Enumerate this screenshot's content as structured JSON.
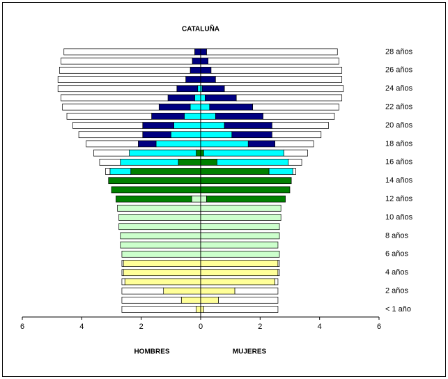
{
  "chart_data": {
    "type": "pyramid",
    "title": "CATALUÑA",
    "categories": [
      "< 1 año",
      null,
      "2 años",
      null,
      "4 años",
      null,
      "6 años",
      null,
      "8 años",
      null,
      "10 años",
      null,
      "12 años",
      null,
      "14 años",
      null,
      "16 años",
      null,
      "18 años",
      null,
      "20 años",
      null,
      "22 años",
      null,
      "24 años",
      null,
      "26 años",
      null,
      "28 años"
    ],
    "xlim": [
      -6,
      6
    ],
    "xticks": [
      {
        "value": -6,
        "label": "6"
      },
      {
        "value": -4,
        "label": "4"
      },
      {
        "value": -2,
        "label": "2"
      },
      0,
      2,
      4,
      6
    ],
    "groups": [
      {
        "label": "HOMBRES",
        "side": "left",
        "series": [
          {
            "color": "#ffff99",
            "values": [
              0.15,
              0.65,
              1.25,
              2.55,
              2.6,
              2.6,
              0,
              0,
              0,
              0,
              0,
              0,
              0,
              0,
              0,
              0,
              0,
              0,
              0,
              0,
              0,
              0,
              0,
              0,
              0,
              0,
              0,
              0,
              0
            ]
          },
          {
            "color": "#ccffcc",
            "values": [
              0,
              0,
              0,
              0,
              0,
              0,
              2.65,
              2.7,
              2.7,
              2.75,
              2.75,
              2.8,
              0.3,
              0,
              0,
              0,
              0,
              0,
              0,
              0,
              0,
              0,
              0,
              0,
              0,
              0,
              0,
              0,
              0
            ]
          },
          {
            "color": "#008000",
            "values": [
              0,
              0,
              0,
              0,
              0,
              0,
              0,
              0,
              0,
              0,
              0,
              0,
              2.55,
              3.0,
              3.1,
              2.35,
              0.75,
              0.15,
              0,
              0,
              0,
              0,
              0,
              0,
              0,
              0,
              0,
              0,
              0
            ]
          },
          {
            "color": "#00ffff",
            "values": [
              0,
              0,
              0,
              0,
              0,
              0,
              0,
              0,
              0,
              0,
              0,
              0,
              0,
              0,
              0,
              0.7,
              1.95,
              2.25,
              1.5,
              1.0,
              0.9,
              0.55,
              0.35,
              0.2,
              0.1,
              0,
              0,
              0,
              0
            ]
          },
          {
            "color": "#000080",
            "values": [
              0,
              0,
              0,
              0,
              0,
              0,
              0,
              0,
              0,
              0,
              0,
              0,
              0,
              0,
              0,
              0,
              0,
              0,
              0.6,
              0.95,
              1.05,
              1.1,
              1.05,
              0.9,
              0.7,
              0.5,
              0.35,
              0.28,
              0.2
            ]
          },
          {
            "color": "#ffffff",
            "values": [
              2.5,
              2.0,
              1.4,
              0.1,
              0.05,
              0.05,
              0,
              0,
              0,
              0,
              0,
              0,
              0,
              0,
              0,
              0.15,
              0.7,
              1.2,
              1.75,
              2.15,
              2.35,
              2.85,
              3.25,
              3.6,
              4.0,
              4.3,
              4.4,
              4.42,
              4.4
            ]
          }
        ]
      },
      {
        "label": "MUJERES",
        "side": "right",
        "series": [
          {
            "color": "#ffff99",
            "values": [
              0.1,
              0.6,
              1.15,
              2.5,
              2.6,
              2.6,
              0,
              0,
              0,
              0,
              0,
              0,
              0,
              0,
              0,
              0,
              0,
              0,
              0,
              0,
              0,
              0,
              0,
              0,
              0,
              0,
              0,
              0,
              0
            ]
          },
          {
            "color": "#ccffcc",
            "values": [
              0,
              0,
              0,
              0,
              0,
              0,
              2.65,
              2.6,
              2.65,
              2.65,
              2.7,
              2.7,
              0.2,
              0,
              0,
              0,
              0,
              0,
              0,
              0,
              0,
              0,
              0,
              0,
              0,
              0,
              0,
              0,
              0
            ]
          },
          {
            "color": "#008000",
            "values": [
              0,
              0,
              0,
              0,
              0,
              0,
              0,
              0,
              0,
              0,
              0,
              0,
              2.65,
              3.0,
              3.05,
              2.3,
              0.55,
              0.1,
              0,
              0,
              0,
              0,
              0,
              0,
              0,
              0,
              0,
              0,
              0
            ]
          },
          {
            "color": "#00ffff",
            "values": [
              0,
              0,
              0,
              0,
              0,
              0,
              0,
              0,
              0,
              0,
              0,
              0,
              0,
              0,
              0,
              0.8,
              2.4,
              2.7,
              1.6,
              1.05,
              0.8,
              0.5,
              0.3,
              0.15,
              0.05,
              0,
              0,
              0,
              0
            ]
          },
          {
            "color": "#000080",
            "values": [
              0,
              0,
              0,
              0,
              0,
              0,
              0,
              0,
              0,
              0,
              0,
              0,
              0,
              0,
              0,
              0,
              0,
              0,
              0.9,
              1.35,
              1.6,
              1.6,
              1.45,
              1.05,
              0.75,
              0.5,
              0.35,
              0.25,
              0.2
            ]
          },
          {
            "color": "#ffffff",
            "values": [
              2.5,
              2.0,
              1.45,
              0.1,
              0.05,
              0.05,
              0,
              0,
              0,
              0,
              0,
              0,
              0,
              0,
              0,
              0.1,
              0.45,
              0.8,
              1.3,
              1.65,
              1.9,
              2.4,
              2.9,
              3.55,
              4.0,
              4.25,
              4.4,
              4.4,
              4.4
            ]
          }
        ]
      }
    ]
  }
}
